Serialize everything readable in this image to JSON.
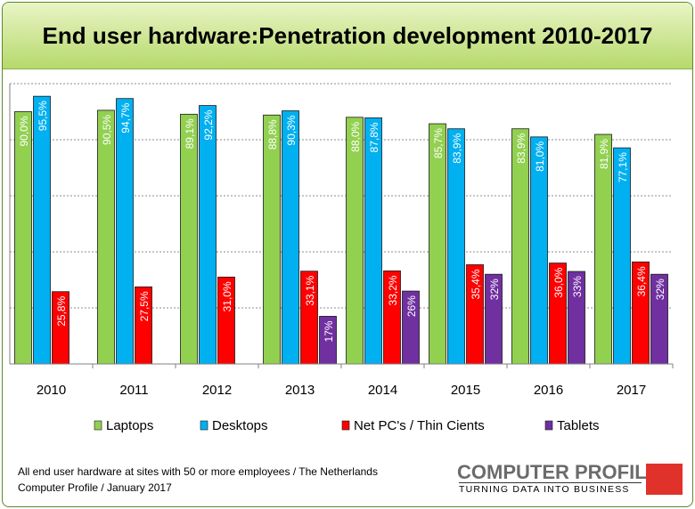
{
  "chart_data": {
    "type": "bar",
    "title": "End user hardware:Penetration development 2010-2017",
    "categories": [
      "2010",
      "2011",
      "2012",
      "2013",
      "2014",
      "2015",
      "2016",
      "2017"
    ],
    "ylim": [
      0,
      100
    ],
    "grid": true,
    "legend_position": "bottom",
    "series": [
      {
        "name": "Laptops",
        "color": "#92d050",
        "values": [
          90.0,
          90.5,
          89.1,
          88.8,
          88.0,
          85.7,
          83.9,
          81.9
        ],
        "labels": [
          "90,0%",
          "90,5%",
          "89,1%",
          "88,8%",
          "88,0%",
          "85,7%",
          "83,9%",
          "81,9%"
        ]
      },
      {
        "name": "Desktops",
        "color": "#00b0f0",
        "values": [
          95.5,
          94.7,
          92.2,
          90.3,
          87.8,
          83.9,
          81.0,
          77.1
        ],
        "labels": [
          "95,5%",
          "94,7%",
          "92,2%",
          "90,3%",
          "87,8%",
          "83,9%",
          "81,0%",
          "77,1%"
        ]
      },
      {
        "name": "Net PC's / Thin Cients",
        "color": "#ff0000",
        "values": [
          25.8,
          27.5,
          31.0,
          33.1,
          33.2,
          35.4,
          36.0,
          36.4
        ],
        "labels": [
          "25,8%",
          "27,5%",
          "31,0%",
          "33,1%",
          "33,2%",
          "35,4%",
          "36,0%",
          "36,4%"
        ]
      },
      {
        "name": "Tablets",
        "color": "#7030a0",
        "values": [
          null,
          null,
          null,
          17,
          26,
          32,
          33,
          32
        ],
        "labels": [
          "",
          "",
          "",
          "17%",
          "26%",
          "32%",
          "33%",
          "32%"
        ]
      }
    ]
  },
  "footnote": {
    "line1": "All end user hardware at sites with 50 or more employees / The Netherlands",
    "line2": "Computer Profile / January 2017"
  },
  "brand": {
    "name": "COMPUTER PROFILE",
    "tagline": "TURNING DATA INTO BUSINESS",
    "accent_color": "#e0322b"
  }
}
